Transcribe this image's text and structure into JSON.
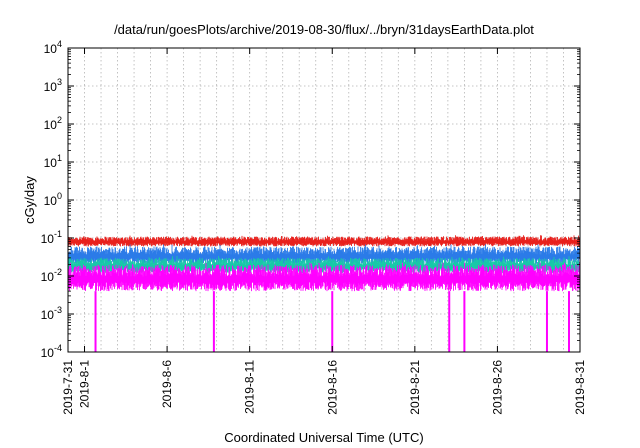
{
  "chart_data": {
    "type": "line",
    "title": "/data/run/goesPlots/archive/2019-08-30/flux/../bryn/31daysEarthData.plot",
    "xlabel": "Coordinated Universal Time (UTC)",
    "ylabel": "cGy/day",
    "y_scale": "log",
    "ylim": [
      0.0001,
      10000
    ],
    "xlim": [
      "2019-07-31",
      "2019-08-31"
    ],
    "grid": true,
    "y_ticks": [
      {
        "value": 0.0001,
        "base": "10",
        "exp": "-4"
      },
      {
        "value": 0.001,
        "base": "10",
        "exp": "-3"
      },
      {
        "value": 0.01,
        "base": "10",
        "exp": "-2"
      },
      {
        "value": 0.1,
        "base": "10",
        "exp": "-1"
      },
      {
        "value": 1,
        "base": "10",
        "exp": "0"
      },
      {
        "value": 10,
        "base": "10",
        "exp": "1"
      },
      {
        "value": 100,
        "base": "10",
        "exp": "2"
      },
      {
        "value": 1000,
        "base": "10",
        "exp": "3"
      },
      {
        "value": 10000,
        "base": "10",
        "exp": "4"
      }
    ],
    "x_ticks": [
      {
        "date": "2019-07-31",
        "label": "2019-7-31"
      },
      {
        "date": "2019-08-01",
        "label": "2019-8-1"
      },
      {
        "date": "2019-08-06",
        "label": "2019-8-6"
      },
      {
        "date": "2019-08-11",
        "label": "2019-8-11"
      },
      {
        "date": "2019-08-16",
        "label": "2019-8-16"
      },
      {
        "date": "2019-08-21",
        "label": "2019-8-21"
      },
      {
        "date": "2019-08-26",
        "label": "2019-8-26"
      },
      {
        "date": "2019-08-31",
        "label": "2019-8-31"
      }
    ],
    "series": [
      {
        "color": "#e8201c",
        "low": 0.06,
        "high": 0.11
      },
      {
        "color": "#2b7be8",
        "low": 0.02,
        "high": 0.06
      },
      {
        "color": "#18c8a8",
        "low": 0.012,
        "high": 0.03
      },
      {
        "color": "#ff00ff",
        "low": 0.004,
        "high": 0.02
      }
    ],
    "dropouts": [
      {
        "date": "2019-08-01T16:00",
        "value": 0.0001
      },
      {
        "date": "2019-08-08T20:00",
        "value": 0.0001
      },
      {
        "date": "2019-08-16T00:00",
        "value": 0.0001
      },
      {
        "date": "2019-08-23T02:00",
        "value": 0.0001
      },
      {
        "date": "2019-08-24T00:00",
        "value": 0.0001
      },
      {
        "date": "2019-08-29T00:00",
        "value": 0.0001
      },
      {
        "date": "2019-08-30T08:00",
        "value": 0.0001
      }
    ]
  }
}
